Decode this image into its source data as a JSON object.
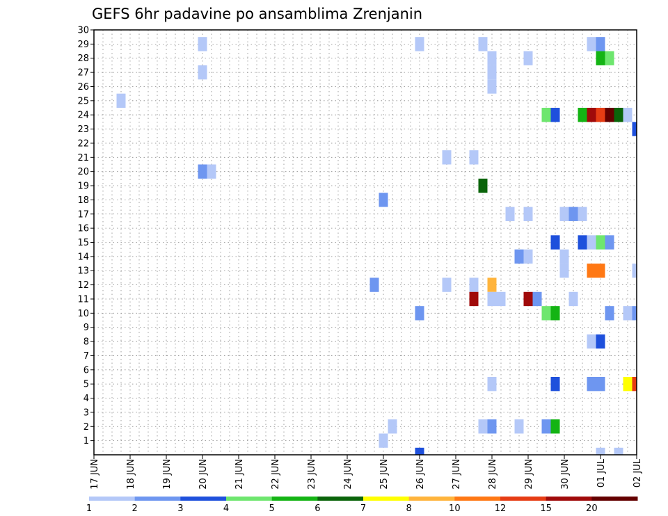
{
  "chart_data": {
    "type": "heatmap",
    "title": "GEFS 6hr padavine po ansamblima Zrenjanin",
    "xlabel": "",
    "ylabel": "",
    "x_tick_labels": [
      "17 JUN",
      "18 JUN",
      "19 JUN",
      "20 JUN",
      "21 JUN",
      "22 JUN",
      "23 JUN",
      "24 JUN",
      "25 JUN",
      "26 JUN",
      "27 JUN",
      "28 JUN",
      "29 JUN",
      "30 JUN",
      "01 JUL",
      "02 JUL"
    ],
    "x_tick_days": [
      0,
      1,
      2,
      3,
      4,
      5,
      6,
      7,
      8,
      9,
      10,
      11,
      12,
      13,
      14,
      15
    ],
    "xlim_days": [
      0,
      15
    ],
    "xlim": [
      "17 JUN 00:00",
      "02 JUL 00:00"
    ],
    "time_step_hours": 6,
    "y_ticks": [
      1,
      2,
      3,
      4,
      5,
      6,
      7,
      8,
      9,
      10,
      11,
      12,
      13,
      14,
      15,
      16,
      17,
      18,
      19,
      20,
      21,
      22,
      23,
      24,
      25,
      26,
      27,
      28,
      29,
      30
    ],
    "ylim": [
      0,
      30
    ],
    "grid": true,
    "colorbar": {
      "position": "bottom",
      "tick_labels": [
        "1",
        "2",
        "3",
        "4",
        "5",
        "6",
        "7",
        "8",
        "10",
        "12",
        "15",
        "20"
      ],
      "colors": [
        "#b4c8f8",
        "#6e96f0",
        "#1e50dc",
        "#6ee66e",
        "#14b414",
        "#0a640a",
        "#ffff00",
        "#ffb43c",
        "#ff7814",
        "#e63c14",
        "#a00a0a",
        "#640000"
      ]
    },
    "cells_note": "each cell = [day_offset_from_17_JUN_start, ensemble_member, color_index]",
    "cells": [
      [
        0.75,
        25,
        0
      ],
      [
        3.0,
        29,
        0
      ],
      [
        3.0,
        27,
        0
      ],
      [
        3.0,
        20,
        1
      ],
      [
        3.25,
        20,
        0
      ],
      [
        8.0,
        1,
        0
      ],
      [
        8.25,
        2,
        0
      ],
      [
        8.0,
        18,
        1
      ],
      [
        7.75,
        12,
        1
      ],
      [
        9.0,
        29,
        0
      ],
      [
        9.0,
        10,
        1
      ],
      [
        9.0,
        0,
        2
      ],
      [
        9.75,
        21,
        0
      ],
      [
        9.75,
        12,
        0
      ],
      [
        10.5,
        21,
        0
      ],
      [
        10.5,
        12,
        0
      ],
      [
        10.5,
        11,
        10
      ],
      [
        10.75,
        29,
        0
      ],
      [
        10.75,
        19,
        5
      ],
      [
        10.75,
        2,
        0
      ],
      [
        11.0,
        28,
        0
      ],
      [
        11.0,
        27,
        0
      ],
      [
        11.0,
        26,
        0
      ],
      [
        11.0,
        12,
        7
      ],
      [
        11.0,
        11,
        0
      ],
      [
        11.0,
        5,
        0
      ],
      [
        11.0,
        2,
        1
      ],
      [
        11.25,
        11,
        0
      ],
      [
        11.5,
        17,
        0
      ],
      [
        11.75,
        14,
        1
      ],
      [
        11.75,
        2,
        0
      ],
      [
        12.0,
        28,
        0
      ],
      [
        12.0,
        17,
        0
      ],
      [
        12.0,
        14,
        0
      ],
      [
        12.0,
        11,
        10
      ],
      [
        12.25,
        11,
        1
      ],
      [
        12.5,
        24,
        3
      ],
      [
        12.5,
        10,
        3
      ],
      [
        12.5,
        2,
        1
      ],
      [
        12.75,
        24,
        2
      ],
      [
        12.75,
        15,
        2
      ],
      [
        12.75,
        10,
        4
      ],
      [
        12.75,
        5,
        2
      ],
      [
        12.75,
        2,
        4
      ],
      [
        13.0,
        17,
        0
      ],
      [
        13.0,
        14,
        0
      ],
      [
        13.0,
        13,
        0
      ],
      [
        13.25,
        17,
        1
      ],
      [
        13.25,
        11,
        0
      ],
      [
        13.5,
        24,
        4
      ],
      [
        13.5,
        17,
        0
      ],
      [
        13.5,
        15,
        2
      ],
      [
        13.75,
        24,
        10
      ],
      [
        13.75,
        15,
        0
      ],
      [
        13.75,
        13,
        8
      ],
      [
        13.75,
        8,
        0
      ],
      [
        13.75,
        5,
        1
      ],
      [
        13.75,
        29,
        0
      ],
      [
        14.0,
        29,
        1
      ],
      [
        14.0,
        28,
        4
      ],
      [
        14.0,
        24,
        9
      ],
      [
        14.0,
        15,
        3
      ],
      [
        14.0,
        13,
        8
      ],
      [
        14.0,
        8,
        2
      ],
      [
        14.0,
        5,
        1
      ],
      [
        14.0,
        0,
        0
      ],
      [
        14.25,
        28,
        3
      ],
      [
        14.25,
        24,
        11
      ],
      [
        14.25,
        15,
        1
      ],
      [
        14.25,
        10,
        1
      ],
      [
        14.5,
        24,
        5
      ],
      [
        14.5,
        0,
        0
      ],
      [
        14.75,
        24,
        0
      ],
      [
        14.75,
        10,
        0
      ],
      [
        14.75,
        5,
        6
      ],
      [
        15.0,
        23,
        2
      ],
      [
        15.0,
        13,
        0
      ],
      [
        15.0,
        10,
        1
      ],
      [
        15.0,
        5,
        9
      ]
    ]
  }
}
